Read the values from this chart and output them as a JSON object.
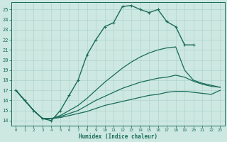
{
  "xlabel": "Humidex (Indice chaleur)",
  "bg_color": "#cce8e0",
  "line_color": "#1a6b5a",
  "grid_color": "#b0d4cc",
  "xlim": [
    -0.5,
    23.5
  ],
  "ylim": [
    13.5,
    25.7
  ],
  "yticks": [
    14,
    15,
    16,
    17,
    18,
    19,
    20,
    21,
    22,
    23,
    24,
    25
  ],
  "xticks": [
    0,
    1,
    2,
    3,
    4,
    5,
    6,
    7,
    8,
    9,
    10,
    11,
    12,
    13,
    14,
    15,
    16,
    17,
    18,
    19,
    20,
    21,
    22,
    23
  ],
  "lines": [
    {
      "x": [
        0,
        1,
        2,
        3,
        4,
        5,
        6,
        7,
        8,
        9,
        10,
        11,
        12,
        13,
        14,
        15,
        16,
        17,
        18,
        19,
        20
      ],
      "y": [
        17,
        16,
        15,
        14.2,
        14.0,
        15.0,
        16.5,
        18.0,
        20.5,
        22.0,
        23.3,
        23.7,
        25.3,
        25.4,
        25.0,
        24.7,
        25.0,
        23.8,
        23.3,
        21.5,
        21.5
      ],
      "has_markers": true,
      "lw": 1.0
    },
    {
      "x": [
        0,
        1,
        2,
        3,
        4,
        5,
        6,
        7,
        8,
        9,
        10,
        11,
        12,
        13,
        14,
        15,
        16,
        17,
        18,
        19,
        20,
        21,
        22,
        23
      ],
      "y": [
        17.0,
        16.0,
        15.0,
        14.2,
        14.2,
        14.5,
        15.0,
        15.5,
        16.2,
        17.0,
        17.8,
        18.5,
        19.2,
        19.8,
        20.3,
        20.7,
        21.0,
        21.2,
        21.3,
        19.0,
        18.0,
        17.7,
        17.5,
        17.3
      ],
      "has_markers": false,
      "lw": 0.9
    },
    {
      "x": [
        0,
        1,
        2,
        3,
        4,
        5,
        6,
        7,
        8,
        9,
        10,
        11,
        12,
        13,
        14,
        15,
        16,
        17,
        18,
        19,
        20,
        21,
        22,
        23
      ],
      "y": [
        17.0,
        16.0,
        15.0,
        14.2,
        14.2,
        14.4,
        14.7,
        15.0,
        15.5,
        16.0,
        16.4,
        16.8,
        17.2,
        17.5,
        17.8,
        18.0,
        18.2,
        18.3,
        18.5,
        18.3,
        17.9,
        17.6,
        17.4,
        17.3
      ],
      "has_markers": false,
      "lw": 0.9
    },
    {
      "x": [
        0,
        1,
        2,
        3,
        4,
        5,
        6,
        7,
        8,
        9,
        10,
        11,
        12,
        13,
        14,
        15,
        16,
        17,
        18,
        19,
        20,
        21,
        22,
        23
      ],
      "y": [
        17.0,
        16.0,
        15.0,
        14.2,
        14.2,
        14.3,
        14.5,
        14.7,
        14.9,
        15.2,
        15.5,
        15.7,
        15.9,
        16.1,
        16.3,
        16.5,
        16.6,
        16.8,
        16.9,
        16.9,
        16.8,
        16.7,
        16.6,
        17.0
      ],
      "has_markers": false,
      "lw": 0.9
    }
  ]
}
